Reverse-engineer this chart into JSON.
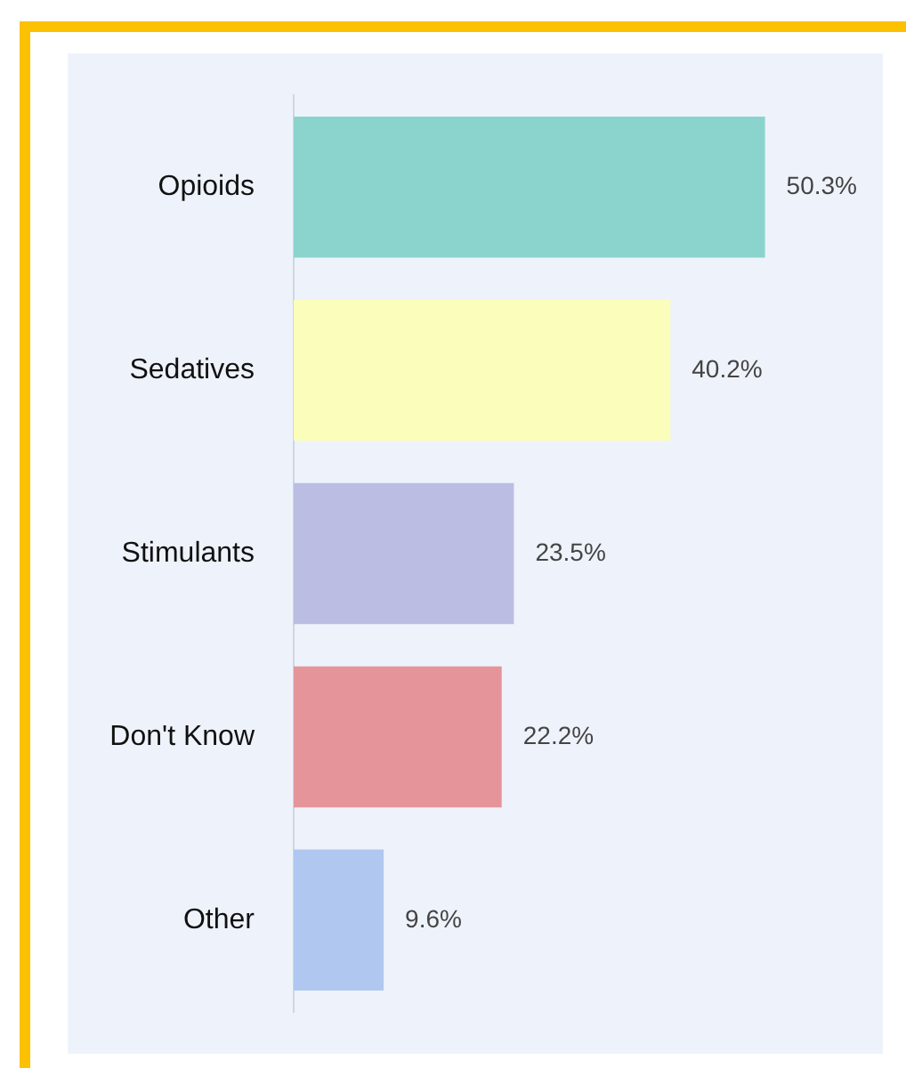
{
  "chart_data": {
    "type": "bar",
    "orientation": "horizontal",
    "categories": [
      "Opioids",
      "Sedatives",
      "Stimulants",
      "Don't Know",
      "Other"
    ],
    "values": [
      50.3,
      40.2,
      23.5,
      22.2,
      9.6
    ],
    "colors": [
      "#8ad4cd",
      "#fbfdbb",
      "#bbbde2",
      "#e59599",
      "#b0c8ef"
    ],
    "value_labels": [
      "50.3%",
      "40.2%",
      "23.5%",
      "22.2%",
      "9.6%"
    ],
    "tick_labels": "y"
  }
}
